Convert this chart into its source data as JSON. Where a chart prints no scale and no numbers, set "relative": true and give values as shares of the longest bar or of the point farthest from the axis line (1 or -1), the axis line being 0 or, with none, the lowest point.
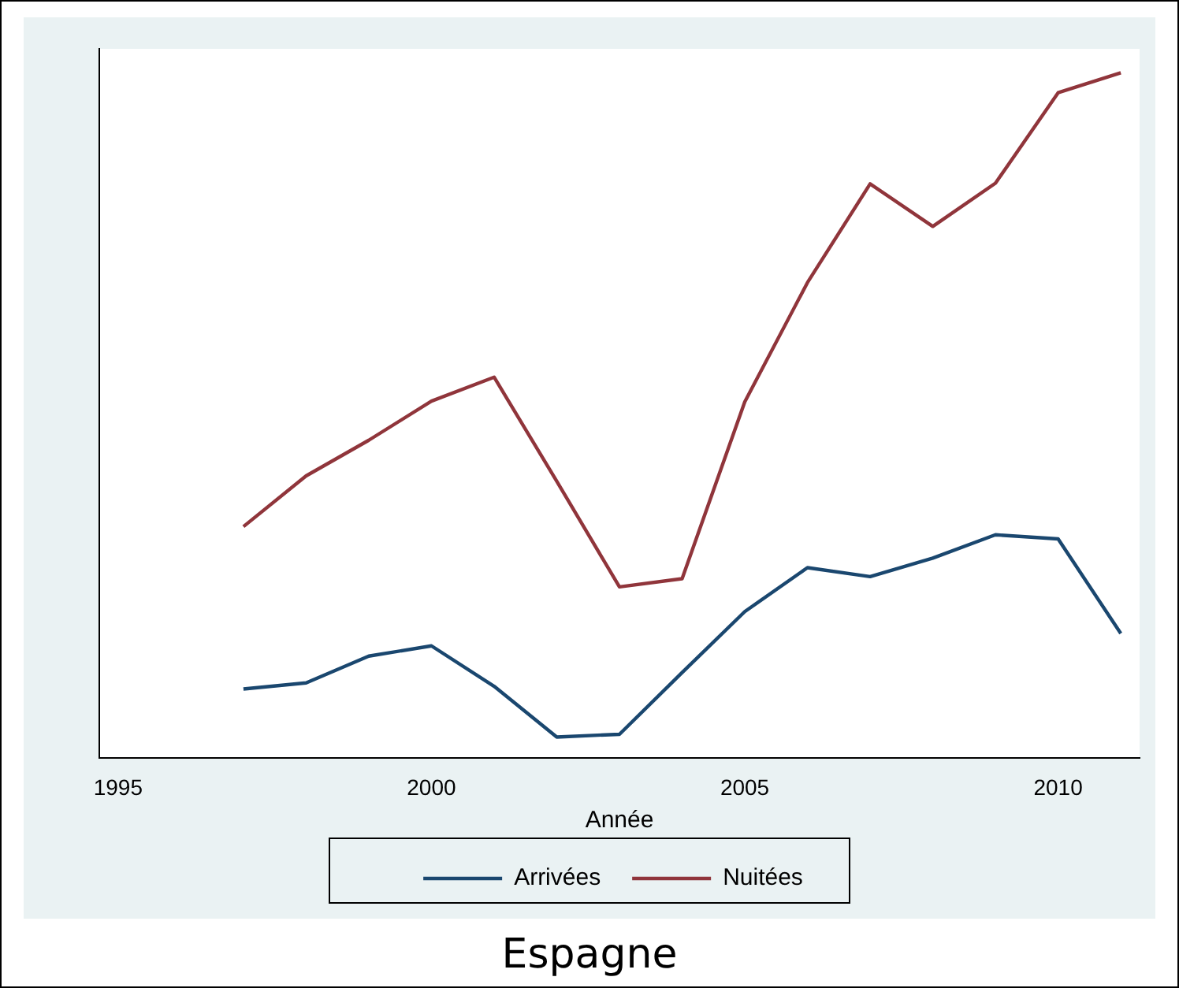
{
  "chart_data": {
    "type": "line",
    "title": "Espagne",
    "xlabel": "Année",
    "relative": true,
    "x": [
      1997,
      1998,
      1999,
      2000,
      2001,
      2002,
      2003,
      2004,
      2005,
      2006,
      2007,
      2008,
      2009,
      2010,
      2011
    ],
    "xlim": [
      1994.7,
      2011.3
    ],
    "xticks": [
      1995,
      2000,
      2005,
      2010
    ],
    "legend": "bottom",
    "marker": "none",
    "line_style": "solid",
    "series": [
      {
        "name": "Arrivées",
        "color": "#1a476f",
        "values": [
          0.101,
          0.11,
          0.149,
          0.164,
          0.105,
          0.031,
          0.035,
          0.125,
          0.214,
          0.278,
          0.265,
          0.292,
          0.326,
          0.32,
          0.182
        ]
      },
      {
        "name": "Nuitées",
        "color": "#90353b",
        "values": [
          0.338,
          0.412,
          0.464,
          0.521,
          0.556,
          0.404,
          0.25,
          0.262,
          0.52,
          0.694,
          0.838,
          0.776,
          0.839,
          0.971,
          1
        ]
      }
    ]
  }
}
